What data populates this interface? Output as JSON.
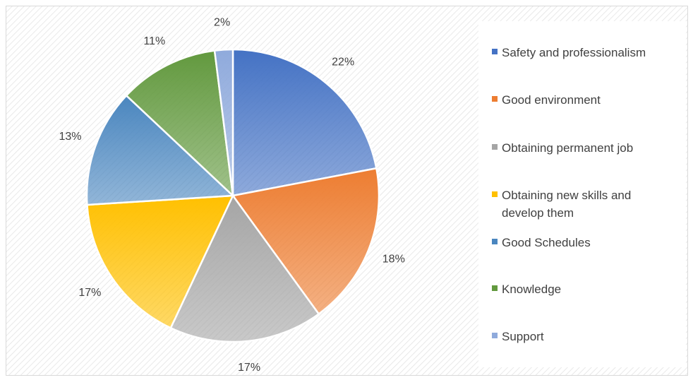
{
  "chart_data": {
    "type": "pie",
    "categories": [
      "Safety and professionalism",
      "Good environment",
      "Obtaining permanent job",
      "Obtaining new skills and develop them",
      "Good Schedules",
      "Knowledge",
      "Support"
    ],
    "values": [
      22,
      18,
      17,
      17,
      13,
      11,
      2
    ],
    "value_labels": [
      "22%",
      "18%",
      "17%",
      "17%",
      "13%",
      "11%",
      "2%"
    ],
    "colors": [
      "#4472c4",
      "#ed7d31",
      "#a5a5a5",
      "#ffc000",
      "#4a86bf",
      "#62993e",
      "#8faadc"
    ],
    "legend": "right"
  }
}
